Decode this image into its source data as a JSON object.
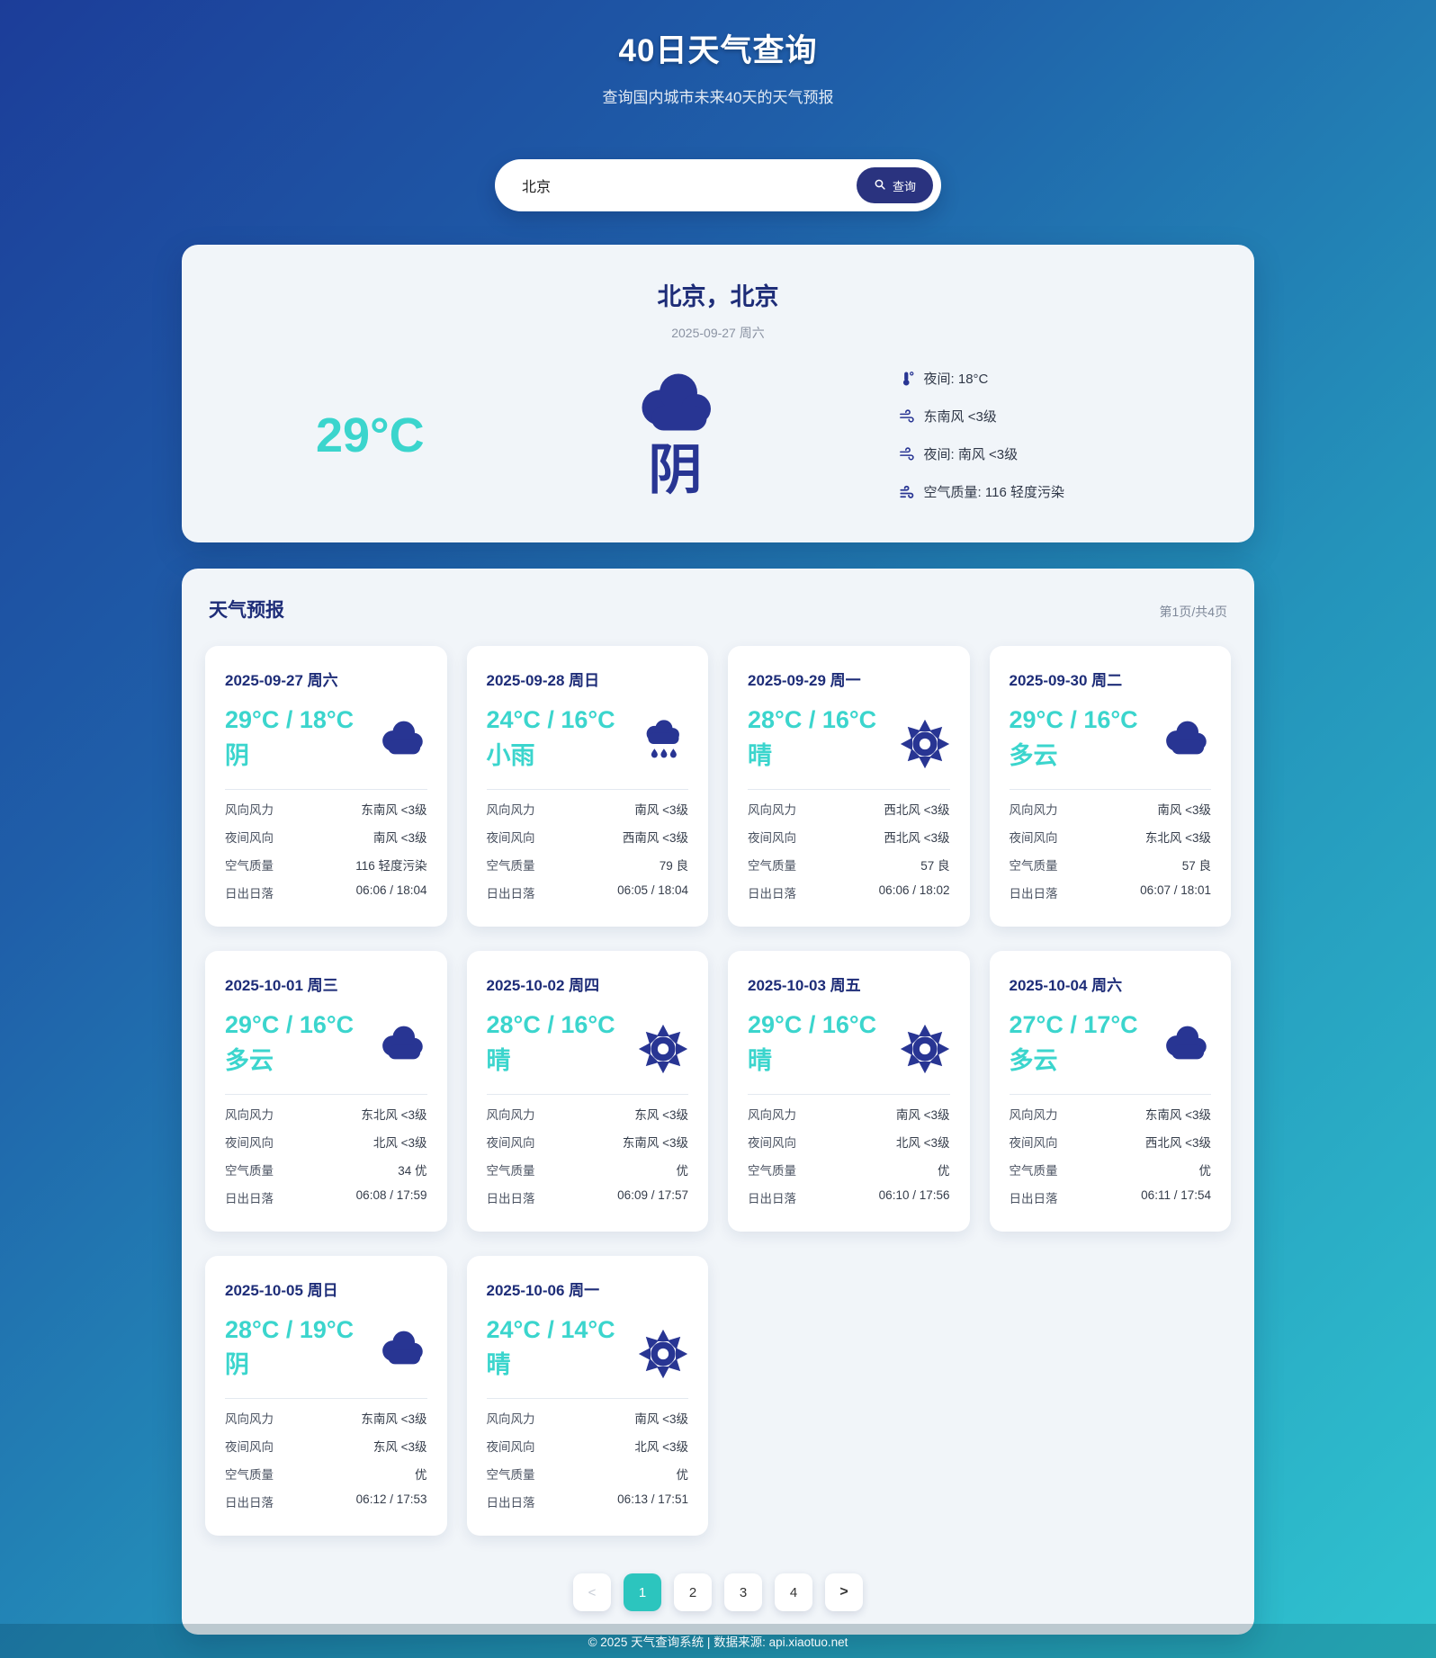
{
  "colors": {
    "accent_teal": "#3bd5cd",
    "icon_navy": "#283593",
    "heading_navy": "#1e2d78",
    "active_page_bg": "#2cc5be",
    "search_button_bg": "#2a337f"
  },
  "icons": {
    "search": "search-icon",
    "cloud": "cloud-icon",
    "rain": "cloud-rain-icon",
    "sun": "sun-icon",
    "thermometer": "thermometer-icon",
    "wind": "wind-icon",
    "air": "air-quality-icon"
  },
  "header": {
    "title": "40日天气查询",
    "subtitle": "查询国内城市未来40天的天气预报"
  },
  "search": {
    "value": "北京",
    "button_label": "查询"
  },
  "current": {
    "city": "北京，北京",
    "date": "2025-09-27 周六",
    "temp": "29°C",
    "condition": "阴",
    "icon": "cloud",
    "details": [
      {
        "icon": "thermometer",
        "text": "夜间: 18°C"
      },
      {
        "icon": "wind",
        "text": "东南风 <3级"
      },
      {
        "icon": "wind",
        "text": "夜间: 南风 <3级"
      },
      {
        "icon": "air",
        "text": "空气质量: 116 轻度污染"
      }
    ]
  },
  "forecast": {
    "title": "天气预报",
    "page_indicator": "第1页/共4页",
    "labels": {
      "wind": "风向风力",
      "night_wind": "夜间风向",
      "air": "空气质量",
      "sun": "日出日落"
    },
    "cards": [
      {
        "date": "2025-09-27 周六",
        "temps": "29°C / 18°C",
        "condition": "阴",
        "icon": "cloud",
        "wind": "东南风 <3级",
        "night_wind": "南风 <3级",
        "air": "116 轻度污染",
        "sun": "06:06 / 18:04"
      },
      {
        "date": "2025-09-28 周日",
        "temps": "24°C / 16°C",
        "condition": "小雨",
        "icon": "rain",
        "wind": "南风 <3级",
        "night_wind": "西南风 <3级",
        "air": "79 良",
        "sun": "06:05 / 18:04"
      },
      {
        "date": "2025-09-29 周一",
        "temps": "28°C / 16°C",
        "condition": "晴",
        "icon": "sun",
        "wind": "西北风 <3级",
        "night_wind": "西北风 <3级",
        "air": "57 良",
        "sun": "06:06 / 18:02"
      },
      {
        "date": "2025-09-30 周二",
        "temps": "29°C / 16°C",
        "condition": "多云",
        "icon": "cloud",
        "wind": "南风 <3级",
        "night_wind": "东北风 <3级",
        "air": "57 良",
        "sun": "06:07 / 18:01"
      },
      {
        "date": "2025-10-01 周三",
        "temps": "29°C / 16°C",
        "condition": "多云",
        "icon": "cloud",
        "wind": "东北风 <3级",
        "night_wind": "北风 <3级",
        "air": "34 优",
        "sun": "06:08 / 17:59"
      },
      {
        "date": "2025-10-02 周四",
        "temps": "28°C / 16°C",
        "condition": "晴",
        "icon": "sun",
        "wind": "东风 <3级",
        "night_wind": "东南风 <3级",
        "air": "优",
        "sun": "06:09 / 17:57"
      },
      {
        "date": "2025-10-03 周五",
        "temps": "29°C / 16°C",
        "condition": "晴",
        "icon": "sun",
        "wind": "南风 <3级",
        "night_wind": "北风 <3级",
        "air": "优",
        "sun": "06:10 / 17:56"
      },
      {
        "date": "2025-10-04 周六",
        "temps": "27°C / 17°C",
        "condition": "多云",
        "icon": "cloud",
        "wind": "东南风 <3级",
        "night_wind": "西北风 <3级",
        "air": "优",
        "sun": "06:11 / 17:54"
      },
      {
        "date": "2025-10-05 周日",
        "temps": "28°C / 19°C",
        "condition": "阴",
        "icon": "cloud",
        "wind": "东南风 <3级",
        "night_wind": "东风 <3级",
        "air": "优",
        "sun": "06:12 / 17:53"
      },
      {
        "date": "2025-10-06 周一",
        "temps": "24°C / 14°C",
        "condition": "晴",
        "icon": "sun",
        "wind": "南风 <3级",
        "night_wind": "北风 <3级",
        "air": "优",
        "sun": "06:13 / 17:51"
      }
    ]
  },
  "pagination": {
    "prev": "<",
    "next": ">",
    "pages": [
      "1",
      "2",
      "3",
      "4"
    ],
    "active": "1"
  },
  "footer": {
    "text": "© 2025 天气查询系统 | 数据来源: api.xiaotuo.net"
  }
}
